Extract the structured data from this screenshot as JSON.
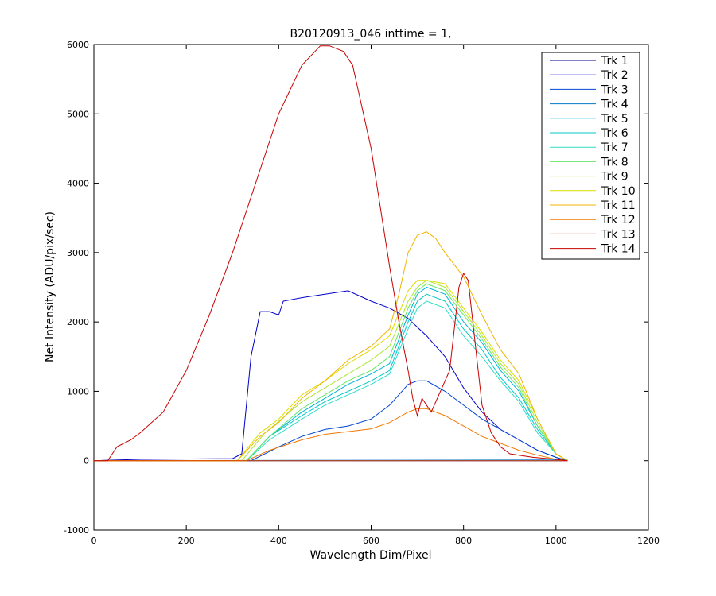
{
  "chart_data": {
    "type": "line",
    "title": "B20120913_046 inttime = 1,",
    "xlabel": "Wavelength Dim/Pixel",
    "ylabel": "Net Intensity (ADU/pix/sec)",
    "xlim": [
      0,
      1200
    ],
    "ylim": [
      -1000,
      6000
    ],
    "xticks": [
      0,
      200,
      400,
      600,
      800,
      1000,
      1200
    ],
    "yticks": [
      -1000,
      0,
      1000,
      2000,
      3000,
      4000,
      5000,
      6000
    ],
    "grid": false,
    "legend_position": "top-right",
    "series": [
      {
        "name": "Trk 1",
        "color": "#00008f",
        "points": [
          [
            0,
            0
          ],
          [
            1025,
            0
          ]
        ]
      },
      {
        "name": "Trk 2",
        "color": "#0000c8",
        "points": [
          [
            0,
            0
          ],
          [
            100,
            20
          ],
          [
            300,
            30
          ],
          [
            320,
            100
          ],
          [
            340,
            1500
          ],
          [
            360,
            2150
          ],
          [
            380,
            2150
          ],
          [
            400,
            2100
          ],
          [
            410,
            2300
          ],
          [
            450,
            2350
          ],
          [
            500,
            2400
          ],
          [
            550,
            2450
          ],
          [
            600,
            2300
          ],
          [
            640,
            2200
          ],
          [
            680,
            2050
          ],
          [
            720,
            1800
          ],
          [
            760,
            1500
          ],
          [
            800,
            1050
          ],
          [
            840,
            700
          ],
          [
            880,
            450
          ],
          [
            920,
            300
          ],
          [
            960,
            150
          ],
          [
            1000,
            50
          ],
          [
            1025,
            0
          ]
        ]
      },
      {
        "name": "Trk 3",
        "color": "#0046d2",
        "points": [
          [
            0,
            0
          ],
          [
            340,
            0
          ],
          [
            400,
            200
          ],
          [
            450,
            350
          ],
          [
            500,
            450
          ],
          [
            550,
            500
          ],
          [
            600,
            600
          ],
          [
            640,
            800
          ],
          [
            680,
            1100
          ],
          [
            700,
            1150
          ],
          [
            720,
            1150
          ],
          [
            760,
            1000
          ],
          [
            800,
            800
          ],
          [
            840,
            600
          ],
          [
            880,
            450
          ],
          [
            920,
            300
          ],
          [
            960,
            150
          ],
          [
            1000,
            50
          ],
          [
            1025,
            0
          ]
        ]
      },
      {
        "name": "Trk 4",
        "color": "#0078c8",
        "points": [
          [
            0,
            0
          ],
          [
            1025,
            10
          ]
        ]
      },
      {
        "name": "Trk 5",
        "color": "#00b4dc",
        "points": [
          [
            0,
            0
          ],
          [
            330,
            0
          ],
          [
            380,
            350
          ],
          [
            450,
            700
          ],
          [
            500,
            900
          ],
          [
            550,
            1100
          ],
          [
            600,
            1250
          ],
          [
            640,
            1400
          ],
          [
            680,
            2100
          ],
          [
            700,
            2400
          ],
          [
            720,
            2500
          ],
          [
            760,
            2400
          ],
          [
            800,
            2000
          ],
          [
            840,
            1700
          ],
          [
            880,
            1300
          ],
          [
            920,
            1000
          ],
          [
            960,
            500
          ],
          [
            1000,
            100
          ],
          [
            1025,
            0
          ]
        ]
      },
      {
        "name": "Trk 6",
        "color": "#00c8c8",
        "points": [
          [
            0,
            0
          ],
          [
            330,
            0
          ],
          [
            380,
            350
          ],
          [
            450,
            650
          ],
          [
            500,
            850
          ],
          [
            550,
            1000
          ],
          [
            600,
            1150
          ],
          [
            640,
            1300
          ],
          [
            680,
            2000
          ],
          [
            700,
            2300
          ],
          [
            720,
            2400
          ],
          [
            760,
            2300
          ],
          [
            800,
            1900
          ],
          [
            840,
            1600
          ],
          [
            880,
            1200
          ],
          [
            920,
            900
          ],
          [
            960,
            450
          ],
          [
            1000,
            100
          ],
          [
            1025,
            0
          ]
        ]
      },
      {
        "name": "Trk 7",
        "color": "#32dcc8",
        "points": [
          [
            0,
            0
          ],
          [
            330,
            0
          ],
          [
            380,
            300
          ],
          [
            450,
            600
          ],
          [
            500,
            800
          ],
          [
            550,
            950
          ],
          [
            600,
            1100
          ],
          [
            640,
            1250
          ],
          [
            680,
            1900
          ],
          [
            700,
            2200
          ],
          [
            720,
            2300
          ],
          [
            760,
            2200
          ],
          [
            800,
            1800
          ],
          [
            840,
            1500
          ],
          [
            880,
            1150
          ],
          [
            920,
            850
          ],
          [
            960,
            400
          ],
          [
            1000,
            100
          ],
          [
            1025,
            0
          ]
        ]
      },
      {
        "name": "Trk 8",
        "color": "#64e664",
        "points": [
          [
            0,
            0
          ],
          [
            330,
            0
          ],
          [
            380,
            350
          ],
          [
            450,
            750
          ],
          [
            500,
            950
          ],
          [
            550,
            1150
          ],
          [
            600,
            1300
          ],
          [
            640,
            1500
          ],
          [
            680,
            2200
          ],
          [
            700,
            2450
          ],
          [
            720,
            2550
          ],
          [
            760,
            2450
          ],
          [
            800,
            2100
          ],
          [
            840,
            1750
          ],
          [
            880,
            1350
          ],
          [
            920,
            1050
          ],
          [
            960,
            500
          ],
          [
            1000,
            100
          ],
          [
            1025,
            0
          ]
        ]
      },
      {
        "name": "Trk 9",
        "color": "#aae632",
        "points": [
          [
            0,
            0
          ],
          [
            320,
            0
          ],
          [
            370,
            400
          ],
          [
            450,
            850
          ],
          [
            500,
            1050
          ],
          [
            550,
            1250
          ],
          [
            600,
            1450
          ],
          [
            640,
            1650
          ],
          [
            680,
            2300
          ],
          [
            700,
            2500
          ],
          [
            720,
            2600
          ],
          [
            760,
            2500
          ],
          [
            800,
            2150
          ],
          [
            840,
            1800
          ],
          [
            880,
            1400
          ],
          [
            920,
            1100
          ],
          [
            960,
            550
          ],
          [
            1000,
            100
          ],
          [
            1025,
            0
          ]
        ]
      },
      {
        "name": "Trk 10",
        "color": "#dcdc00",
        "points": [
          [
            0,
            0
          ],
          [
            310,
            0
          ],
          [
            360,
            400
          ],
          [
            400,
            600
          ],
          [
            450,
            950
          ],
          [
            500,
            1150
          ],
          [
            550,
            1400
          ],
          [
            600,
            1600
          ],
          [
            640,
            1800
          ],
          [
            680,
            2450
          ],
          [
            700,
            2600
          ],
          [
            720,
            2600
          ],
          [
            760,
            2550
          ],
          [
            800,
            2200
          ],
          [
            840,
            1850
          ],
          [
            880,
            1450
          ],
          [
            920,
            1150
          ],
          [
            960,
            600
          ],
          [
            1000,
            100
          ],
          [
            1025,
            0
          ]
        ]
      },
      {
        "name": "Trk 11",
        "color": "#f0b400",
        "points": [
          [
            0,
            0
          ],
          [
            310,
            0
          ],
          [
            360,
            350
          ],
          [
            400,
            550
          ],
          [
            450,
            900
          ],
          [
            500,
            1150
          ],
          [
            550,
            1450
          ],
          [
            600,
            1650
          ],
          [
            640,
            1900
          ],
          [
            660,
            2400
          ],
          [
            680,
            3000
          ],
          [
            700,
            3250
          ],
          [
            720,
            3300
          ],
          [
            740,
            3200
          ],
          [
            760,
            3000
          ],
          [
            800,
            2650
          ],
          [
            840,
            2100
          ],
          [
            880,
            1600
          ],
          [
            920,
            1250
          ],
          [
            960,
            600
          ],
          [
            1000,
            100
          ],
          [
            1025,
            0
          ]
        ]
      },
      {
        "name": "Trk 12",
        "color": "#f07800",
        "points": [
          [
            0,
            0
          ],
          [
            330,
            0
          ],
          [
            380,
            150
          ],
          [
            450,
            300
          ],
          [
            500,
            380
          ],
          [
            550,
            420
          ],
          [
            600,
            460
          ],
          [
            640,
            550
          ],
          [
            680,
            700
          ],
          [
            700,
            750
          ],
          [
            720,
            750
          ],
          [
            760,
            650
          ],
          [
            800,
            500
          ],
          [
            840,
            350
          ],
          [
            880,
            250
          ],
          [
            920,
            150
          ],
          [
            960,
            80
          ],
          [
            1000,
            20
          ],
          [
            1025,
            0
          ]
        ]
      },
      {
        "name": "Trk 13",
        "color": "#dc3c00",
        "points": [
          [
            0,
            0
          ],
          [
            1025,
            0
          ]
        ]
      },
      {
        "name": "Trk 14",
        "color": "#c80000",
        "points": [
          [
            0,
            0
          ],
          [
            30,
            0
          ],
          [
            40,
            100
          ],
          [
            50,
            200
          ],
          [
            80,
            300
          ],
          [
            100,
            400
          ],
          [
            150,
            700
          ],
          [
            200,
            1300
          ],
          [
            250,
            2100
          ],
          [
            300,
            3000
          ],
          [
            350,
            4000
          ],
          [
            400,
            5000
          ],
          [
            450,
            5700
          ],
          [
            490,
            5980
          ],
          [
            510,
            5980
          ],
          [
            540,
            5900
          ],
          [
            560,
            5700
          ],
          [
            600,
            4500
          ],
          [
            640,
            2800
          ],
          [
            660,
            2000
          ],
          [
            680,
            1300
          ],
          [
            690,
            900
          ],
          [
            700,
            650
          ],
          [
            710,
            900
          ],
          [
            730,
            700
          ],
          [
            750,
            1000
          ],
          [
            770,
            1300
          ],
          [
            790,
            2500
          ],
          [
            800,
            2700
          ],
          [
            810,
            2600
          ],
          [
            820,
            2000
          ],
          [
            840,
            800
          ],
          [
            860,
            400
          ],
          [
            880,
            200
          ],
          [
            900,
            100
          ],
          [
            950,
            50
          ],
          [
            1000,
            20
          ],
          [
            1025,
            0
          ]
        ]
      }
    ]
  }
}
